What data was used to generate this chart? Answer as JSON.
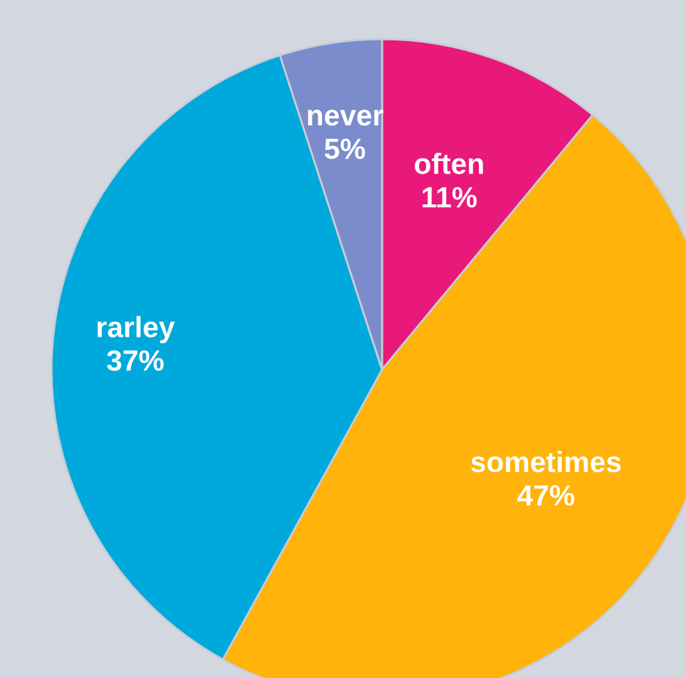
{
  "chart_data": {
    "type": "pie",
    "categories": [
      "often",
      "sometimes",
      "rarley",
      "never"
    ],
    "values": [
      11,
      47,
      37,
      5
    ],
    "value_labels": [
      "11%",
      "47%",
      "37%",
      "5%"
    ],
    "colors": [
      "#e8197a",
      "#ffb30b",
      "#00a9db",
      "#7a8ccb"
    ]
  }
}
